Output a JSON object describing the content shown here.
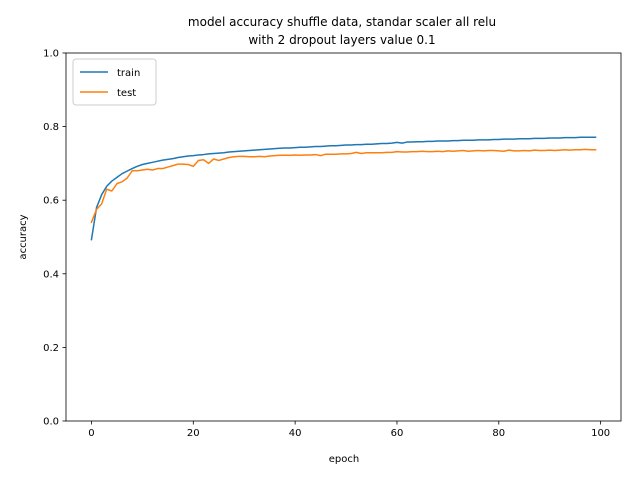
{
  "chart_data": {
    "type": "line",
    "title": [
      "model accuracy shuffle data, standar scaler all relu",
      "with 2 dropout layers value 0.1"
    ],
    "xlabel": "epoch",
    "ylabel": "accuracy",
    "xlim": [
      -5,
      104
    ],
    "ylim": [
      0.0,
      1.0
    ],
    "xticks": [
      0,
      20,
      40,
      60,
      80,
      100
    ],
    "yticks": [
      0.0,
      0.2,
      0.4,
      0.6,
      0.8,
      1.0
    ],
    "xtick_labels": [
      "0",
      "20",
      "40",
      "60",
      "80",
      "100"
    ],
    "ytick_labels": [
      "0.0",
      "0.2",
      "0.4",
      "0.6",
      "0.8",
      "1.0"
    ],
    "grid": false,
    "legend_position": "top-left",
    "series": [
      {
        "name": "train",
        "color": "#1f77b4",
        "x": [
          0,
          1,
          2,
          3,
          4,
          5,
          6,
          7,
          8,
          9,
          10,
          11,
          12,
          13,
          14,
          15,
          16,
          17,
          18,
          19,
          20,
          21,
          22,
          23,
          24,
          25,
          26,
          27,
          28,
          29,
          30,
          31,
          32,
          33,
          34,
          35,
          36,
          37,
          38,
          39,
          40,
          41,
          42,
          43,
          44,
          45,
          46,
          47,
          48,
          49,
          50,
          51,
          52,
          53,
          54,
          55,
          56,
          57,
          58,
          59,
          60,
          61,
          62,
          63,
          64,
          65,
          66,
          67,
          68,
          69,
          70,
          71,
          72,
          73,
          74,
          75,
          76,
          77,
          78,
          79,
          80,
          81,
          82,
          83,
          84,
          85,
          86,
          87,
          88,
          89,
          90,
          91,
          92,
          93,
          94,
          95,
          96,
          97,
          98,
          99
        ],
        "values": [
          0.493,
          0.58,
          0.615,
          0.638,
          0.652,
          0.662,
          0.672,
          0.679,
          0.686,
          0.692,
          0.697,
          0.7,
          0.703,
          0.706,
          0.709,
          0.711,
          0.713,
          0.716,
          0.718,
          0.72,
          0.721,
          0.723,
          0.724,
          0.726,
          0.727,
          0.728,
          0.729,
          0.731,
          0.732,
          0.733,
          0.734,
          0.735,
          0.736,
          0.737,
          0.738,
          0.739,
          0.74,
          0.741,
          0.742,
          0.742,
          0.743,
          0.744,
          0.744,
          0.745,
          0.746,
          0.746,
          0.747,
          0.748,
          0.748,
          0.749,
          0.75,
          0.75,
          0.751,
          0.751,
          0.752,
          0.752,
          0.753,
          0.754,
          0.754,
          0.755,
          0.757,
          0.755,
          0.758,
          0.758,
          0.759,
          0.759,
          0.76,
          0.76,
          0.761,
          0.761,
          0.761,
          0.762,
          0.762,
          0.763,
          0.763,
          0.763,
          0.764,
          0.764,
          0.764,
          0.765,
          0.765,
          0.766,
          0.766,
          0.766,
          0.767,
          0.767,
          0.767,
          0.768,
          0.768,
          0.768,
          0.769,
          0.769,
          0.769,
          0.77,
          0.77,
          0.77,
          0.771,
          0.771,
          0.771,
          0.771
        ]
      },
      {
        "name": "test",
        "color": "#ff7f0e",
        "x": [
          0,
          1,
          2,
          3,
          4,
          5,
          6,
          7,
          8,
          9,
          10,
          11,
          12,
          13,
          14,
          15,
          16,
          17,
          18,
          19,
          20,
          21,
          22,
          23,
          24,
          25,
          26,
          27,
          28,
          29,
          30,
          31,
          32,
          33,
          34,
          35,
          36,
          37,
          38,
          39,
          40,
          41,
          42,
          43,
          44,
          45,
          46,
          47,
          48,
          49,
          50,
          51,
          52,
          53,
          54,
          55,
          56,
          57,
          58,
          59,
          60,
          61,
          62,
          63,
          64,
          65,
          66,
          67,
          68,
          69,
          70,
          71,
          72,
          73,
          74,
          75,
          76,
          77,
          78,
          79,
          80,
          81,
          82,
          83,
          84,
          85,
          86,
          87,
          88,
          89,
          90,
          91,
          92,
          93,
          94,
          95,
          96,
          97,
          98,
          99
        ],
        "values": [
          0.54,
          0.575,
          0.59,
          0.63,
          0.625,
          0.645,
          0.65,
          0.66,
          0.68,
          0.68,
          0.682,
          0.684,
          0.682,
          0.686,
          0.686,
          0.69,
          0.694,
          0.698,
          0.698,
          0.697,
          0.692,
          0.708,
          0.71,
          0.7,
          0.712,
          0.708,
          0.712,
          0.716,
          0.718,
          0.719,
          0.719,
          0.718,
          0.718,
          0.719,
          0.718,
          0.72,
          0.721,
          0.722,
          0.722,
          0.722,
          0.723,
          0.722,
          0.723,
          0.723,
          0.724,
          0.721,
          0.725,
          0.725,
          0.725,
          0.726,
          0.726,
          0.727,
          0.73,
          0.727,
          0.729,
          0.729,
          0.729,
          0.729,
          0.73,
          0.73,
          0.732,
          0.731,
          0.731,
          0.732,
          0.732,
          0.733,
          0.732,
          0.732,
          0.733,
          0.732,
          0.734,
          0.733,
          0.734,
          0.735,
          0.733,
          0.734,
          0.735,
          0.734,
          0.735,
          0.735,
          0.734,
          0.733,
          0.736,
          0.734,
          0.734,
          0.735,
          0.734,
          0.736,
          0.735,
          0.735,
          0.736,
          0.735,
          0.736,
          0.737,
          0.736,
          0.737,
          0.737,
          0.738,
          0.737,
          0.737
        ]
      }
    ]
  }
}
